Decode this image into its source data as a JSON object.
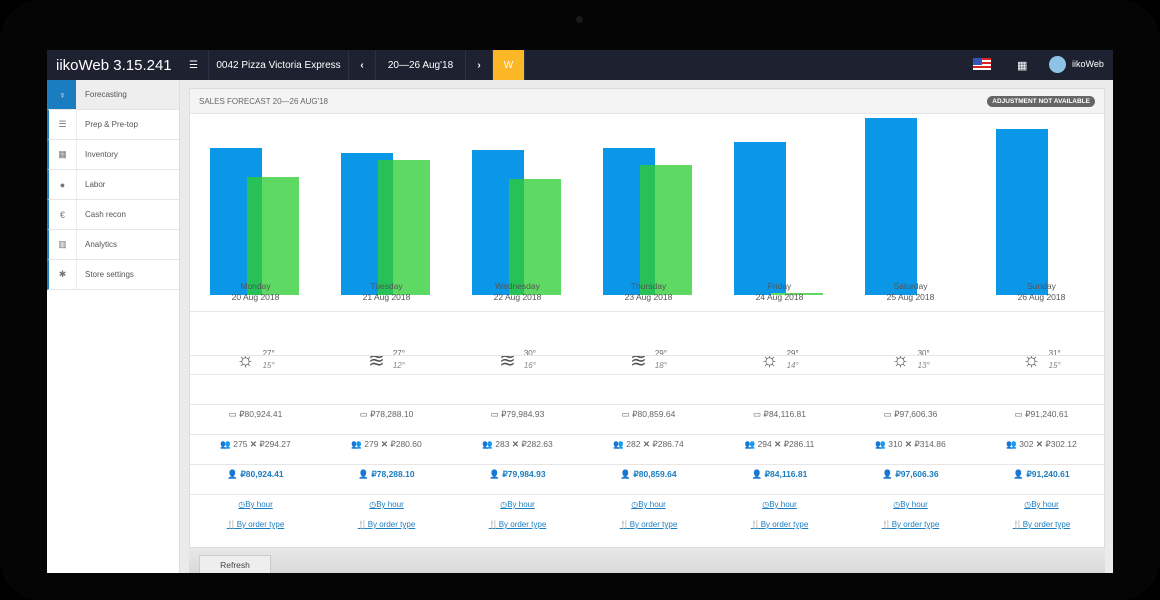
{
  "topbar": {
    "app_title": "iikoWeb 3.15.241",
    "store": "0042 Pizza Victoria Express",
    "period": "20—26 Aug'18",
    "week_toggle": "W",
    "user": "iikoWeb"
  },
  "sidebar": {
    "items": [
      {
        "label": "Forecasting",
        "icon": "lightbulb-icon",
        "active": true
      },
      {
        "label": "Prep & Pre-top",
        "icon": "list-icon"
      },
      {
        "label": "Inventory",
        "icon": "calculator-icon"
      },
      {
        "label": "Labor",
        "icon": "user-icon"
      },
      {
        "label": "Cash recon",
        "icon": "euro-icon"
      },
      {
        "label": "Analytics",
        "icon": "bar-chart-icon"
      },
      {
        "label": "Store settings",
        "icon": "gear-icon"
      }
    ]
  },
  "panel": {
    "title": "SALES FORECAST 20—26 AUG'18",
    "badge": "ADJUSTMENT NOT AVAILABLE"
  },
  "colors": {
    "forecast": "#0a97e8",
    "actual": "#5ed964",
    "overlap": "#27c158",
    "accent": "#1a7dc0",
    "week_button": "#fbb726"
  },
  "chart_data": {
    "type": "bar",
    "categories": [
      "Monday",
      "Tuesday",
      "Wednesday",
      "Thursday",
      "Friday",
      "Saturday",
      "Sunday"
    ],
    "series": [
      {
        "values": [
          80924.41,
          78288.1,
          79984.93,
          80859.64,
          84116.81,
          97606.36,
          91240.61
        ]
      },
      {
        "values": [
          65000,
          74400,
          63900,
          71600,
          1100,
          null,
          null
        ]
      }
    ]
  },
  "days": [
    {
      "name": "Monday",
      "date": "20 Aug 2018",
      "weather": "sun-icon",
      "hi": "27°",
      "lo": "15°",
      "forecast": "₽80,924.41",
      "guests": "275",
      "avg": "₽294.27",
      "total": "₽80,924.41"
    },
    {
      "name": "Tuesday",
      "date": "21 Aug 2018",
      "weather": "wind-icon",
      "hi": "27°",
      "lo": "12°",
      "forecast": "₽78,288.10",
      "guests": "279",
      "avg": "₽280.60",
      "total": "₽78,288.10"
    },
    {
      "name": "Wednesday",
      "date": "22 Aug 2018",
      "weather": "wind-icon",
      "hi": "30°",
      "lo": "16°",
      "forecast": "₽79,984.93",
      "guests": "283",
      "avg": "₽282.63",
      "total": "₽79,984.93"
    },
    {
      "name": "Thursday",
      "date": "23 Aug 2018",
      "weather": "wind-icon",
      "hi": "29°",
      "lo": "18°",
      "forecast": "₽80,859.64",
      "guests": "282",
      "avg": "₽286.74",
      "total": "₽80,859.64"
    },
    {
      "name": "Friday",
      "date": "24 Aug 2018",
      "weather": "sun-icon",
      "hi": "29°",
      "lo": "14°",
      "forecast": "₽84,116.81",
      "guests": "294",
      "avg": "₽286.11",
      "total": "₽84,116.81"
    },
    {
      "name": "Saturday",
      "date": "25 Aug 2018",
      "weather": "sun-icon",
      "hi": "30°",
      "lo": "13°",
      "forecast": "₽97,606.36",
      "guests": "310",
      "avg": "₽314.86",
      "total": "₽97,606.36"
    },
    {
      "name": "Sunday",
      "date": "26 Aug 2018",
      "weather": "sun-icon",
      "hi": "31°",
      "lo": "15°",
      "forecast": "₽91,240.61",
      "guests": "302",
      "avg": "₽302.12",
      "total": "₽91,240.61"
    }
  ],
  "links": {
    "by_hour": "By hour",
    "by_order_type": "By order type"
  },
  "refresh_label": "Refresh"
}
